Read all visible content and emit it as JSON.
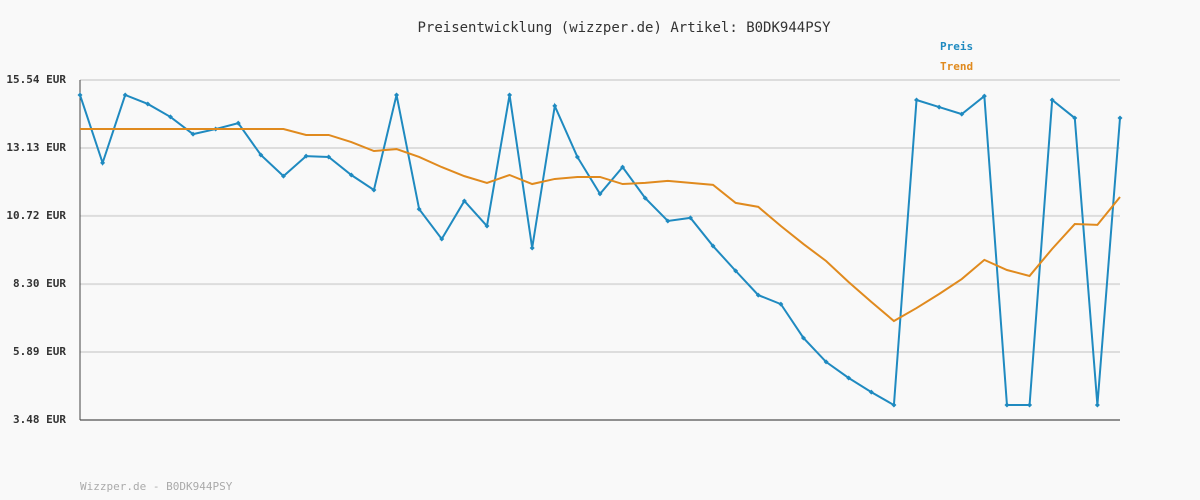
{
  "chart_data": {
    "type": "line",
    "title": "Preisentwicklung (wizzper.de) Artikel: B0DK944PSY",
    "footer": "Wizzper.de - B0DK944PSY",
    "categories": [
      null,
      null,
      null,
      null,
      null,
      null,
      null,
      null,
      null,
      null,
      null,
      null,
      null,
      null,
      null,
      null,
      null,
      null,
      null,
      null,
      null,
      null,
      null,
      null,
      null,
      null,
      null,
      null,
      null,
      null,
      null,
      null,
      null,
      null,
      null,
      null,
      null,
      null,
      null,
      null,
      null,
      null,
      null,
      null,
      null,
      null,
      null
    ],
    "series": [
      {
        "name": "Preis",
        "color": "#1f8ac0",
        "markers": true,
        "values": [
          15.01,
          12.6,
          15.01,
          14.69,
          14.23,
          13.62,
          13.8,
          14.01,
          12.88,
          12.13,
          12.84,
          12.81,
          12.17,
          11.64,
          15.01,
          10.96,
          9.9,
          11.25,
          10.36,
          15.01,
          9.58,
          14.62,
          12.81,
          11.5,
          12.45,
          11.35,
          10.54,
          10.65,
          9.65,
          8.77,
          7.91,
          7.59,
          6.39,
          5.54,
          4.97,
          4.47,
          4.01,
          14.83,
          14.58,
          14.33,
          14.97,
          4.01,
          4.01,
          14.83,
          14.19,
          4.01,
          14.19
        ]
      },
      {
        "name": "Trend",
        "color": "#e08a1e",
        "markers": false,
        "values": [
          13.8,
          13.8,
          13.8,
          13.8,
          13.8,
          13.8,
          13.8,
          13.8,
          13.8,
          13.8,
          13.59,
          13.59,
          13.34,
          13.02,
          13.09,
          12.81,
          12.45,
          12.13,
          11.89,
          12.17,
          11.85,
          12.03,
          12.1,
          12.1,
          11.85,
          11.89,
          11.96,
          11.89,
          11.82,
          11.18,
          11.04,
          10.36,
          9.72,
          9.12,
          8.37,
          7.67,
          6.99,
          7.45,
          7.95,
          8.48,
          9.16,
          8.8,
          8.59,
          9.55,
          10.43,
          10.4,
          11.39
        ]
      }
    ],
    "ylim": [
      3.48,
      15.54
    ],
    "yticks": [
      {
        "value": 3.48,
        "label": "3.48 EUR"
      },
      {
        "value": 5.89,
        "label": "5.89 EUR"
      },
      {
        "value": 8.3,
        "label": "8.30 EUR"
      },
      {
        "value": 10.72,
        "label": "10.72 EUR"
      },
      {
        "value": 13.13,
        "label": "13.13 EUR"
      },
      {
        "value": 15.54,
        "label": "15.54 EUR"
      }
    ],
    "grid": true,
    "legend": "top-right"
  }
}
